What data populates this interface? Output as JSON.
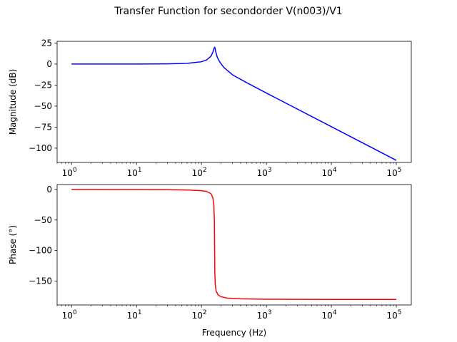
{
  "figure": {
    "title": "Transfer Function for secondorder V(n003)/V1"
  },
  "chart_data": [
    {
      "type": "line",
      "name": "magnitude",
      "xscale": "log",
      "xlim": [
        0.6,
        170000
      ],
      "ylim": [
        -117,
        27
      ],
      "xlabel": "",
      "ylabel": "Magnitude (dB)",
      "grid": false,
      "x_ticks": [
        {
          "value": 1,
          "exp": "0"
        },
        {
          "value": 10,
          "exp": "1"
        },
        {
          "value": 100,
          "exp": "2"
        },
        {
          "value": 1000,
          "exp": "3"
        },
        {
          "value": 10000,
          "exp": "4"
        },
        {
          "value": 100000,
          "exp": "5"
        }
      ],
      "y_ticks": [
        {
          "value": 25,
          "label": "25"
        },
        {
          "value": 0,
          "label": "0"
        },
        {
          "value": -25,
          "label": "−25"
        },
        {
          "value": -50,
          "label": "−50"
        },
        {
          "value": -75,
          "label": "−75"
        },
        {
          "value": -100,
          "label": "−100"
        }
      ],
      "series": [
        {
          "color": "#0000ff",
          "x": [
            1,
            10,
            30,
            60,
            100,
            120,
            140,
            150,
            155,
            159,
            162,
            166,
            175,
            190,
            220,
            300,
            500,
            1000,
            10000,
            100000
          ],
          "y": [
            0,
            0,
            0.2,
            0.8,
            2.7,
            4.8,
            9.3,
            14.2,
            17.8,
            20,
            18.8,
            14.5,
            8.2,
            2.8,
            -3.9,
            -12.8,
            -22.3,
            -34.5,
            -74.5,
            -114.5
          ]
        }
      ]
    },
    {
      "type": "line",
      "name": "phase",
      "xscale": "log",
      "xlim": [
        0.6,
        170000
      ],
      "ylim": [
        -189,
        8
      ],
      "xlabel": "Frequency (Hz)",
      "ylabel": "Phase (°)",
      "grid": false,
      "x_ticks": [
        {
          "value": 1,
          "exp": "0"
        },
        {
          "value": 10,
          "exp": "1"
        },
        {
          "value": 100,
          "exp": "2"
        },
        {
          "value": 1000,
          "exp": "3"
        },
        {
          "value": 10000,
          "exp": "4"
        },
        {
          "value": 100000,
          "exp": "5"
        }
      ],
      "y_ticks": [
        {
          "value": 0,
          "label": "0"
        },
        {
          "value": -50,
          "label": "−50"
        },
        {
          "value": -100,
          "label": "−100"
        },
        {
          "value": -150,
          "label": "−150"
        }
      ],
      "series": [
        {
          "color": "#ff0000",
          "x": [
            1,
            10,
            30,
            60,
            100,
            120,
            140,
            150,
            155,
            158,
            159.15,
            160.5,
            163,
            168,
            180,
            200,
            250,
            400,
            1000,
            10000,
            100000
          ],
          "y": [
            0,
            -0.1,
            -0.4,
            -0.9,
            -2,
            -3.2,
            -7,
            -14,
            -25,
            -50,
            -90,
            -135,
            -155,
            -166,
            -172.5,
            -175.5,
            -177.8,
            -179,
            -179.6,
            -180,
            -180
          ]
        }
      ]
    }
  ]
}
